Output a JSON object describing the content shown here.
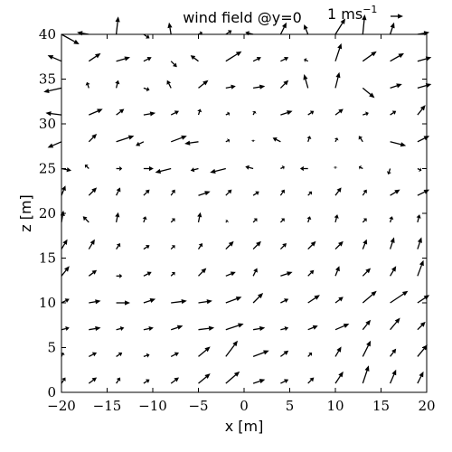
{
  "chart_data": {
    "type": "quiver",
    "title": "wind field @y=0",
    "key": {
      "label": "1 ms",
      "superscript": "−1",
      "magnitude": 1
    },
    "xlabel": "x [m]",
    "ylabel": "z [m]",
    "xlim": [
      -20,
      20
    ],
    "ylim": [
      0,
      40
    ],
    "x_ticks": [
      -20,
      -15,
      -10,
      -5,
      0,
      5,
      10,
      15,
      20
    ],
    "y_ticks": [
      0,
      5,
      10,
      15,
      20,
      25,
      30,
      35,
      40
    ],
    "x_tick_labels": [
      "−20",
      "−15",
      "−10",
      "−5",
      "0",
      "5",
      "10",
      "15",
      "20"
    ],
    "y_tick_labels": [
      "0",
      "5",
      "10",
      "15",
      "20",
      "25",
      "30",
      "35",
      "40"
    ],
    "grid": false,
    "grid_x": [
      -20,
      -17,
      -14,
      -11,
      -8,
      -5,
      -2,
      1,
      4,
      7,
      10,
      13,
      16,
      19
    ],
    "grid_z": [
      1,
      4,
      7,
      10,
      13,
      16,
      19,
      22,
      25,
      28,
      31,
      34,
      37,
      40
    ],
    "vectors": [
      {
        "z": 40,
        "u": [
          0.9,
          -0.6,
          0.1,
          0.3,
          -0.1,
          0.2,
          0.3,
          -0.4,
          0.3,
          -0.2,
          0.5,
          0.1,
          0.2,
          0.6
        ],
        "w": [
          -0.5,
          0.1,
          0.9,
          -0.2,
          0.6,
          0.1,
          0.2,
          0.1,
          0.6,
          0.5,
          0.8,
          1.0,
          0.6,
          0.1
        ]
      },
      {
        "z": 37,
        "u": [
          -0.7,
          0.6,
          0.7,
          0.4,
          0.3,
          -0.4,
          0.8,
          0.4,
          0.4,
          -0.2,
          0.3,
          0.7,
          0.7,
          0.7
        ],
        "w": [
          0.3,
          0.4,
          0.2,
          0.2,
          -0.3,
          0.3,
          0.5,
          0.2,
          0.2,
          0.1,
          0.9,
          0.5,
          0.4,
          0.2
        ]
      },
      {
        "z": 34,
        "u": [
          -0.9,
          -0.1,
          0.1,
          0.3,
          -0.2,
          0.5,
          0.5,
          0.6,
          0.4,
          -0.2,
          0.2,
          0.6,
          0.6,
          0.7
        ],
        "w": [
          -0.2,
          0.3,
          0.4,
          -0.1,
          0.4,
          0.4,
          0.1,
          0.1,
          0.4,
          0.7,
          0.8,
          -0.5,
          0.2,
          0.2
        ]
      },
      {
        "z": 31,
        "u": [
          -0.8,
          0.7,
          0.4,
          0.6,
          0.4,
          0.1,
          0.2,
          0.1,
          0.6,
          0.3,
          0.4,
          0.3,
          0.3,
          0.4
        ],
        "w": [
          0.1,
          0.3,
          0.3,
          0.1,
          0.2,
          0.3,
          0.1,
          0.2,
          0.2,
          0.2,
          0.3,
          0.1,
          0.2,
          0.5
        ]
      },
      {
        "z": 28,
        "u": [
          -0.7,
          0.4,
          0.9,
          -0.4,
          0.8,
          -0.7,
          0.2,
          0.0,
          -0.4,
          0.1,
          0.1,
          -0.2,
          0.8,
          0.6
        ],
        "w": [
          -0.3,
          0.4,
          0.3,
          -0.2,
          0.3,
          -0.1,
          0.1,
          0.1,
          0.2,
          0.3,
          0.2,
          0.3,
          -0.2,
          0.3
        ]
      },
      {
        "z": 25,
        "u": [
          0.5,
          -0.2,
          0.3,
          0.5,
          -0.8,
          -0.4,
          -0.8,
          -0.4,
          0.2,
          -0.4,
          0.0,
          -0.2,
          -0.1,
          0.2
        ],
        "w": [
          -0.1,
          0.2,
          0.0,
          0.0,
          -0.2,
          -0.1,
          -0.2,
          0.1,
          0.1,
          0.0,
          0.1,
          0.1,
          -0.3,
          -0.1
        ]
      },
      {
        "z": 22,
        "u": [
          0.2,
          0.4,
          0.2,
          0.3,
          0.2,
          0.6,
          0.3,
          0.3,
          0.2,
          0.2,
          0.3,
          0.2,
          0.5,
          0.6
        ],
        "w": [
          0.5,
          0.4,
          0.4,
          0.3,
          0.3,
          0.2,
          0.3,
          0.2,
          0.3,
          0.2,
          0.4,
          0.3,
          0.3,
          0.3
        ]
      },
      {
        "z": 19,
        "u": [
          0.1,
          -0.3,
          0.1,
          0.1,
          0.2,
          0.1,
          0.1,
          0.2,
          0.2,
          0.1,
          0.1,
          0.2,
          0.1,
          0.1
        ],
        "w": [
          0.6,
          0.3,
          0.5,
          0.3,
          0.2,
          0.5,
          0.1,
          0.2,
          0.2,
          0.3,
          0.4,
          0.2,
          0.3,
          0.4
        ]
      },
      {
        "z": 16,
        "u": [
          0.3,
          0.3,
          0.2,
          0.3,
          0.2,
          0.2,
          0.4,
          0.4,
          0.3,
          0.4,
          0.4,
          0.2,
          0.2,
          0.2
        ],
        "w": [
          0.5,
          0.5,
          0.3,
          0.2,
          0.2,
          0.3,
          0.4,
          0.4,
          0.3,
          0.4,
          0.4,
          0.5,
          0.6,
          0.6
        ]
      },
      {
        "z": 13,
        "u": [
          0.4,
          0.4,
          0.3,
          0.4,
          0.2,
          0.4,
          0.5,
          0.2,
          0.6,
          0.3,
          0.2,
          0.4,
          0.3,
          0.3
        ],
        "w": [
          0.5,
          0.3,
          0.0,
          0.2,
          0.2,
          0.4,
          0.2,
          0.4,
          0.2,
          0.3,
          0.5,
          0.4,
          0.5,
          0.8
        ]
      },
      {
        "z": 10,
        "u": [
          0.4,
          0.6,
          0.7,
          0.6,
          0.8,
          0.7,
          0.8,
          0.5,
          0.4,
          0.6,
          0.4,
          0.7,
          0.9,
          0.6
        ],
        "w": [
          0.2,
          0.1,
          0.0,
          0.2,
          0.1,
          0.1,
          0.3,
          0.5,
          0.2,
          0.4,
          0.3,
          0.6,
          0.6,
          0.4
        ]
      },
      {
        "z": 7,
        "u": [
          0.4,
          0.6,
          0.4,
          0.5,
          0.6,
          0.8,
          0.9,
          0.6,
          0.4,
          0.5,
          0.7,
          0.4,
          0.5,
          0.4
        ],
        "w": [
          0.1,
          0.1,
          0.1,
          0.1,
          0.2,
          0.1,
          0.3,
          0.1,
          0.1,
          0.2,
          0.3,
          0.5,
          0.6,
          0.4
        ]
      },
      {
        "z": 4,
        "u": [
          0.1,
          0.4,
          0.3,
          0.3,
          0.4,
          0.6,
          0.6,
          0.8,
          0.4,
          0.2,
          0.3,
          0.4,
          0.3,
          0.5
        ],
        "w": [
          0.2,
          0.2,
          0.2,
          0.1,
          0.2,
          0.5,
          0.8,
          0.3,
          0.3,
          0.2,
          0.5,
          0.8,
          0.4,
          0.6
        ]
      },
      {
        "z": 1,
        "u": [
          0.2,
          0.4,
          0.2,
          0.3,
          0.4,
          0.6,
          0.7,
          0.6,
          0.4,
          0.3,
          0.4,
          0.3,
          0.3,
          0.3
        ],
        "w": [
          0.3,
          0.3,
          0.3,
          0.2,
          0.3,
          0.5,
          0.6,
          0.2,
          0.2,
          0.3,
          0.6,
          0.9,
          0.7,
          0.6
        ]
      }
    ]
  }
}
